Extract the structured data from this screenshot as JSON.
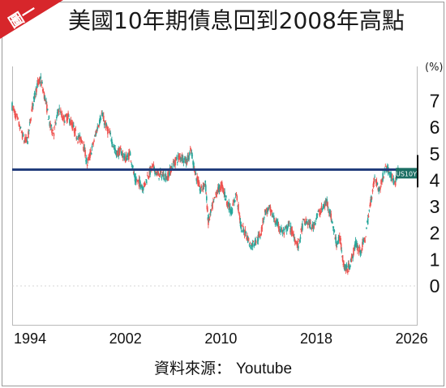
{
  "badge": {
    "label": "圖一",
    "color": "#d7262b"
  },
  "title": "美國10年期債息回到2008年高點",
  "source": {
    "prefix": "資料來源：",
    "name": "Youtube"
  },
  "chart_data": {
    "type": "candlestick",
    "title": "美國10年期債息回到2008年高點",
    "ylabel": "(%)",
    "xlim": [
      1992.5,
      2026.5
    ],
    "ylim": [
      -1.5,
      8.3
    ],
    "x_ticks": [
      1994,
      2002,
      2010,
      2018,
      2026
    ],
    "x_tick_labels": [
      "1994",
      "2002",
      "2010",
      "2018",
      "2026"
    ],
    "y_ticks": [
      0,
      1,
      2,
      3,
      4,
      5,
      6,
      7
    ],
    "y_tick_labels": [
      "0",
      "1",
      "2",
      "3",
      "4",
      "5",
      "6",
      "7"
    ],
    "reference_line": {
      "value": 4.4,
      "color": "#1f3a7a"
    },
    "last_value_label": {
      "text": "US10Y",
      "value": 4.4,
      "color": "#1b6e63"
    },
    "colors": {
      "up": "#26a69a",
      "down": "#ef5350"
    },
    "series": [
      {
        "x": [
          1992.5,
          1993.0,
          1993.5,
          1993.8,
          1994.2,
          1994.6,
          1994.9,
          1995.3,
          1995.7,
          1996.0,
          1996.4,
          1996.8,
          1997.2,
          1997.6,
          1998.0,
          1998.4,
          1998.8,
          1999.2,
          1999.6,
          2000.0,
          2000.4,
          2000.8,
          2001.2,
          2001.6,
          2002.0,
          2002.4,
          2002.8,
          2003.2,
          2003.5,
          2003.9,
          2004.3,
          2004.7,
          2005.1,
          2005.5,
          2005.9,
          2006.3,
          2006.7,
          2007.1,
          2007.5,
          2007.9,
          2008.3,
          2008.7,
          2008.95,
          2009.3,
          2009.7,
          2010.1,
          2010.5,
          2010.9,
          2011.3,
          2011.7,
          2012.1,
          2012.5,
          2012.9,
          2013.3,
          2013.7,
          2014.1,
          2014.5,
          2014.9,
          2015.3,
          2015.7,
          2016.1,
          2016.5,
          2016.9,
          2017.3,
          2017.7,
          2018.1,
          2018.5,
          2018.9,
          2019.3,
          2019.7,
          2020.0,
          2020.3,
          2020.6,
          2020.9,
          2021.3,
          2021.7,
          2022.1,
          2022.5,
          2022.9,
          2023.3,
          2023.8,
          2024.2,
          2024.6,
          2024.9
        ],
        "y": [
          6.8,
          6.2,
          5.5,
          5.5,
          6.8,
          7.6,
          7.8,
          7.0,
          6.0,
          5.8,
          6.7,
          6.3,
          6.4,
          6.0,
          5.6,
          5.5,
          4.6,
          5.2,
          5.9,
          6.5,
          6.0,
          5.6,
          5.0,
          5.1,
          4.8,
          5.0,
          4.0,
          3.9,
          3.7,
          4.2,
          4.5,
          4.2,
          4.2,
          4.1,
          4.5,
          4.8,
          4.9,
          4.7,
          5.1,
          4.2,
          3.6,
          3.9,
          2.4,
          3.0,
          3.6,
          3.8,
          3.2,
          2.8,
          3.5,
          2.2,
          2.0,
          1.5,
          1.7,
          1.9,
          2.8,
          2.9,
          2.5,
          2.2,
          2.0,
          2.3,
          1.9,
          1.5,
          2.4,
          2.4,
          2.2,
          2.7,
          2.9,
          3.2,
          2.5,
          1.6,
          1.8,
          0.8,
          0.6,
          0.9,
          1.6,
          1.3,
          1.8,
          3.0,
          4.1,
          3.6,
          4.5,
          4.3,
          3.8,
          4.4
        ]
      }
    ]
  }
}
